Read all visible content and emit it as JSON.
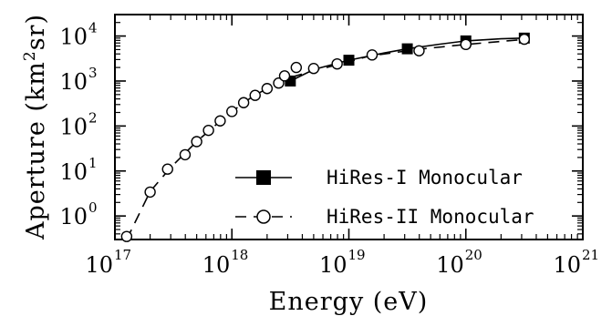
{
  "chart_data": {
    "type": "line",
    "title": "",
    "xlabel": "Energy (eV)",
    "ylabel_main": "Aperture (km",
    "ylabel_sup": "2",
    "ylabel_tail": "sr)",
    "x_scale": "log",
    "y_scale": "log",
    "xlim": [
      1e+17,
      1e+21
    ],
    "ylim": [
      0.3,
      30000
    ],
    "x_ticks": [
      {
        "base": "10",
        "exp": "17",
        "value": 1e+17
      },
      {
        "base": "10",
        "exp": "18",
        "value": 1e+18
      },
      {
        "base": "10",
        "exp": "19",
        "value": 1e+19
      },
      {
        "base": "10",
        "exp": "20",
        "value": 1e+20
      },
      {
        "base": "10",
        "exp": "21",
        "value": 1e+21
      }
    ],
    "y_ticks": [
      {
        "base": "10",
        "exp": "0",
        "value": 1
      },
      {
        "base": "10",
        "exp": "1",
        "value": 10
      },
      {
        "base": "10",
        "exp": "2",
        "value": 100
      },
      {
        "base": "10",
        "exp": "3",
        "value": 1000
      },
      {
        "base": "10",
        "exp": "4",
        "value": 10000
      }
    ],
    "grid": false,
    "legend_position": "center-right",
    "series": [
      {
        "name": "HiRes-I Monocular",
        "color": "#000000",
        "line_style": "solid",
        "marker": "filled-square",
        "x": [
          3.16e+18,
          1e+19,
          3.16e+19,
          1e+20,
          3.16e+20
        ],
        "y": [
          1000,
          2900,
          5200,
          7800,
          9000
        ],
        "curve_x": [
          3.16e+18,
          5e+18,
          1e+19,
          2e+19,
          3.16e+19,
          6e+19,
          1e+20,
          2e+20,
          3.16e+20
        ],
        "curve_y": [
          1000,
          1800,
          2900,
          4200,
          5200,
          6600,
          7800,
          8700,
          9000
        ]
      },
      {
        "name": "HiRes-II Monocular",
        "color": "#000000",
        "line_style": "dashed",
        "marker": "open-circle",
        "x": [
          1.26e+17,
          2e+17,
          2.82e+17,
          3.98e+17,
          5e+17,
          6.31e+17,
          7.94e+17,
          1e+18,
          1.26e+18,
          1.58e+18,
          2e+18,
          2.51e+18,
          2.82e+18,
          3.55e+18,
          5e+18,
          7.94e+18,
          1.58e+19,
          3.98e+19,
          1e+20,
          3.16e+20
        ],
        "y": [
          0.35,
          3.4,
          11,
          23,
          45,
          80,
          130,
          210,
          330,
          480,
          680,
          900,
          1300,
          2000,
          1900,
          2400,
          3800,
          4700,
          6500,
          8500
        ],
        "error_bar": {
          "x": 1e+20,
          "y_low": 5500,
          "y_high": 7800
        },
        "curve_x": [
          1.26e+17,
          2e+17,
          3e+17,
          5e+17,
          8e+17,
          1e+18,
          1.5e+18,
          2e+18,
          3e+18,
          5e+18,
          8e+18,
          1.5e+19,
          4e+19,
          1e+20,
          3.16e+20
        ],
        "curve_y": [
          0.3,
          3.5,
          12,
          45,
          130,
          210,
          450,
          680,
          1150,
          1700,
          2300,
          3600,
          5100,
          6500,
          8400
        ]
      }
    ]
  }
}
